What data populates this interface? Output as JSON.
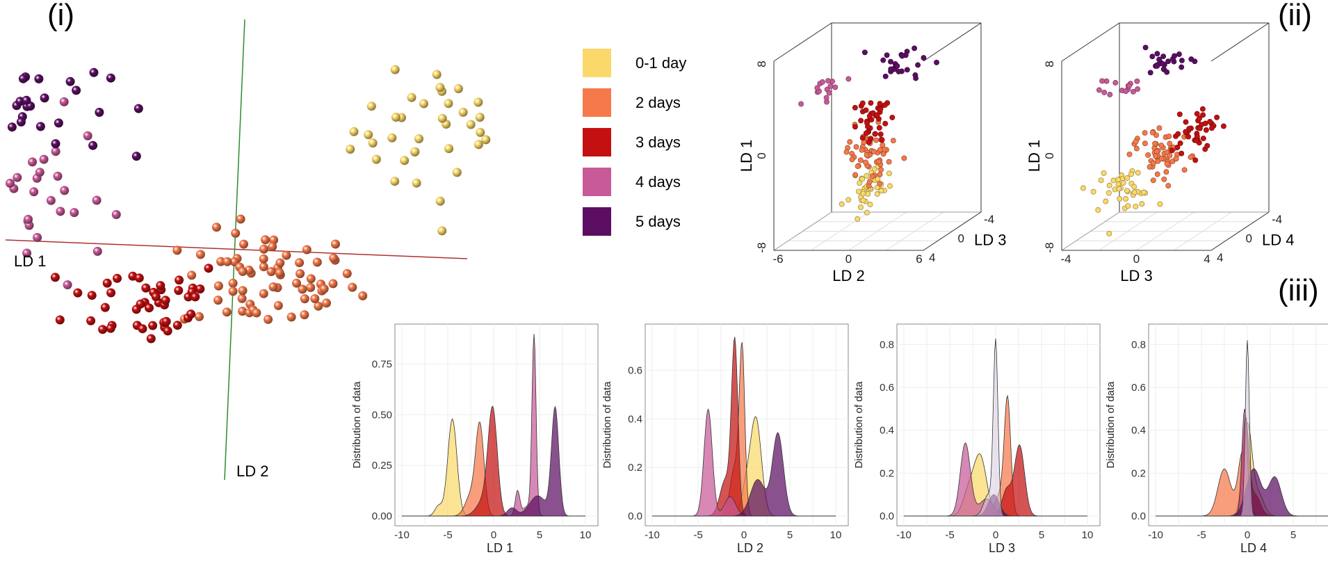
{
  "colors": {
    "day01": "#FAD96A",
    "day2": "#F5794A",
    "day3": "#C41010",
    "day4": "#C85A98",
    "day5": "#5C0E63",
    "ld1_axis": "#B03030",
    "ld2_axis": "#2E8B2E"
  },
  "panel_labels": {
    "i": "(i)",
    "ii": "(ii)",
    "iii": "(iii)"
  },
  "legend": [
    {
      "label": "0-1 day",
      "color": "#FAD96A"
    },
    {
      "label": "2 days",
      "color": "#F5794A"
    },
    {
      "label": "3 days",
      "color": "#C41010"
    },
    {
      "label": "4 days",
      "color": "#C85A98"
    },
    {
      "label": "5 days",
      "color": "#5C0E63"
    }
  ],
  "chart_data": [
    {
      "id": "panel-i",
      "type": "scatter",
      "title": "",
      "axis_labels": {
        "x": "LD 1",
        "y": "LD 2"
      },
      "series": [
        {
          "name": "0-1 day",
          "center": [
            5.5,
            4.0
          ],
          "spread": [
            1.3,
            1.4
          ],
          "n": 50
        },
        {
          "name": "2 days",
          "center": [
            0.8,
            -1.5
          ],
          "spread": [
            1.1,
            0.9
          ],
          "n": 70
        },
        {
          "name": "3 days",
          "center": [
            -2.2,
            -2.2
          ],
          "spread": [
            1.0,
            0.8
          ],
          "n": 45
        },
        {
          "name": "4 days",
          "center": [
            -5.0,
            1.5
          ],
          "spread": [
            0.9,
            1.5
          ],
          "n": 30
        },
        {
          "name": "5 days",
          "center": [
            -5.2,
            5.0
          ],
          "spread": [
            1.0,
            1.0
          ],
          "n": 30
        }
      ]
    },
    {
      "id": "panel-ii-a",
      "type": "scatter",
      "title": "",
      "xlabel": "LD 2",
      "ylabel": "LD 1",
      "zlabel": "LD 3",
      "x_ticks": [
        "-6",
        "0",
        "6"
      ],
      "y_ticks": [
        "-8",
        "0",
        "8"
      ],
      "z_ticks": [
        "-4",
        "0",
        "4"
      ],
      "xlim": [
        -6,
        6
      ],
      "ylim": [
        -8,
        8
      ],
      "zlim": [
        -4,
        4
      ],
      "series": [
        {
          "name": "0-1 day",
          "center": [
            0.8,
            -4.0,
            0
          ],
          "spread": [
            0.9,
            1.0,
            0.8
          ],
          "n": 40
        },
        {
          "name": "2 days",
          "center": [
            0.5,
            -0.5,
            0
          ],
          "spread": [
            1.0,
            1.3,
            0.8
          ],
          "n": 60
        },
        {
          "name": "3 days",
          "center": [
            0.6,
            2.2,
            0
          ],
          "spread": [
            0.8,
            1.0,
            0.8
          ],
          "n": 40
        },
        {
          "name": "4 days",
          "center": [
            -3.5,
            5.5,
            0
          ],
          "spread": [
            0.8,
            0.6,
            0.6
          ],
          "n": 15
        },
        {
          "name": "5 days",
          "center": [
            3.5,
            7.8,
            0
          ],
          "spread": [
            1.2,
            0.7,
            0.6
          ],
          "n": 25
        }
      ]
    },
    {
      "id": "panel-ii-b",
      "type": "scatter",
      "title": "",
      "xlabel": "LD 3",
      "ylabel": "LD 1",
      "zlabel": "LD 4",
      "x_ticks": [
        "-4",
        "0",
        "4"
      ],
      "y_ticks": [
        "-8",
        "0",
        "8"
      ],
      "z_ticks": [
        "-4",
        "0",
        "4"
      ],
      "xlim": [
        -4,
        4
      ],
      "ylim": [
        -8,
        8
      ],
      "zlim": [
        -4,
        4
      ],
      "series": [
        {
          "name": "0-1 day",
          "center": [
            -1.8,
            -3.8,
            0
          ],
          "spread": [
            0.9,
            1.0,
            0.8
          ],
          "n": 40
        },
        {
          "name": "2 days",
          "center": [
            0.6,
            -0.8,
            0
          ],
          "spread": [
            0.9,
            1.2,
            0.8
          ],
          "n": 60
        },
        {
          "name": "3 days",
          "center": [
            2.6,
            1.6,
            0
          ],
          "spread": [
            0.8,
            1.0,
            0.8
          ],
          "n": 40
        },
        {
          "name": "4 days",
          "center": [
            -1.6,
            5.8,
            0
          ],
          "spread": [
            0.6,
            0.6,
            0.6
          ],
          "n": 15
        },
        {
          "name": "5 days",
          "center": [
            0.8,
            7.5,
            0
          ],
          "spread": [
            0.7,
            0.8,
            0.6
          ],
          "n": 25
        }
      ]
    },
    {
      "id": "density-ld1",
      "type": "area",
      "xlabel": "LD 1",
      "ylabel": "Distribution of data",
      "xlim": [
        -10,
        10
      ],
      "ylim": [
        0,
        0.9
      ],
      "x_ticks": [
        "-10",
        "-5",
        "0",
        "5",
        "10"
      ],
      "y_ticks": [
        {
          "v": 0,
          "t": "0.00"
        },
        {
          "v": 0.25,
          "t": "0.25"
        },
        {
          "v": 0.5,
          "t": "0.50"
        },
        {
          "v": 0.75,
          "t": "0.75"
        }
      ],
      "series": [
        {
          "name": "0-1 day",
          "components": [
            [
              -4.5,
              0.5,
              0.48
            ],
            [
              -6.0,
              0.4,
              0.05
            ]
          ]
        },
        {
          "name": "2 days",
          "components": [
            [
              -1.5,
              0.45,
              0.44
            ],
            [
              -2.5,
              0.6,
              0.1
            ]
          ]
        },
        {
          "name": "3 days",
          "components": [
            [
              -0.1,
              0.5,
              0.5
            ],
            [
              -1.0,
              0.8,
              0.08
            ]
          ]
        },
        {
          "name": "4 days",
          "components": [
            [
              4.4,
              0.22,
              0.88
            ],
            [
              2.6,
              0.25,
              0.12
            ],
            [
              3.8,
              0.6,
              0.05
            ]
          ]
        },
        {
          "name": "5 days",
          "components": [
            [
              6.7,
              0.4,
              0.53
            ],
            [
              4.8,
              0.9,
              0.1
            ],
            [
              2.0,
              0.5,
              0.04
            ]
          ]
        }
      ]
    },
    {
      "id": "density-ld2",
      "type": "area",
      "xlabel": "LD 2",
      "ylabel": "Distribution of data",
      "xlim": [
        -10,
        10
      ],
      "ylim": [
        0,
        0.75
      ],
      "x_ticks": [
        "-10",
        "-5",
        "0",
        "5",
        "10"
      ],
      "y_ticks": [
        {
          "v": 0,
          "t": "0.0"
        },
        {
          "v": 0.2,
          "t": "0.2"
        },
        {
          "v": 0.4,
          "t": "0.4"
        },
        {
          "v": 0.6,
          "t": "0.6"
        }
      ],
      "series": [
        {
          "name": "0-1 day",
          "components": [
            [
              1.3,
              0.6,
              0.4
            ],
            [
              0.2,
              0.5,
              0.1
            ]
          ]
        },
        {
          "name": "2 days",
          "components": [
            [
              -0.2,
              0.3,
              0.66
            ],
            [
              -1.0,
              0.5,
              0.2
            ]
          ]
        },
        {
          "name": "3 days",
          "components": [
            [
              -1.0,
              0.35,
              0.7
            ],
            [
              -2.0,
              0.6,
              0.15
            ]
          ]
        },
        {
          "name": "4 days",
          "components": [
            [
              -3.9,
              0.45,
              0.44
            ],
            [
              -1.5,
              0.6,
              0.08
            ]
          ]
        },
        {
          "name": "5 days",
          "components": [
            [
              3.7,
              0.6,
              0.34
            ],
            [
              1.5,
              0.8,
              0.15
            ]
          ]
        }
      ]
    },
    {
      "id": "density-ld3",
      "type": "area",
      "xlabel": "LD 3",
      "ylabel": "Distribution of data",
      "xlim": [
        -10,
        10
      ],
      "ylim": [
        0,
        0.85
      ],
      "x_ticks": [
        "-10",
        "-5",
        "0",
        "5",
        "10"
      ],
      "y_ticks": [
        {
          "v": 0,
          "t": "0.0"
        },
        {
          "v": 0.2,
          "t": "0.2"
        },
        {
          "v": 0.4,
          "t": "0.4"
        },
        {
          "v": 0.6,
          "t": "0.6"
        },
        {
          "v": 0.8,
          "t": "0.8"
        }
      ],
      "series": [
        {
          "name": "0-1 day",
          "components": [
            [
              -1.7,
              0.7,
              0.28
            ],
            [
              -3.0,
              0.6,
              0.1
            ]
          ]
        },
        {
          "name": "2 days",
          "components": [
            [
              1.3,
              0.35,
              0.52
            ],
            [
              0.5,
              0.6,
              0.1
            ]
          ]
        },
        {
          "name": "3 days",
          "components": [
            [
              2.6,
              0.55,
              0.33
            ],
            [
              1.2,
              0.5,
              0.12
            ]
          ]
        },
        {
          "name": "4 days",
          "components": [
            [
              -3.3,
              0.55,
              0.34
            ],
            [
              -1.0,
              0.8,
              0.08
            ]
          ]
        },
        {
          "name": "5 days",
          "components": [
            [
              -0.2,
              0.6,
              0.1
            ]
          ]
        },
        {
          "name": "ref",
          "components": [
            [
              0.0,
              0.25,
              0.8
            ],
            [
              -0.8,
              0.5,
              0.1
            ]
          ]
        }
      ]
    },
    {
      "id": "density-ld4",
      "type": "area",
      "xlabel": "LD 4",
      "ylabel": "Distribution of data",
      "xlim": [
        -10,
        10
      ],
      "ylim": [
        0,
        0.85
      ],
      "x_ticks": [
        "-10",
        "-5",
        "0",
        "5"
      ],
      "y_ticks": [
        {
          "v": 0,
          "t": "0.0"
        },
        {
          "v": 0.2,
          "t": "0.2"
        },
        {
          "v": 0.4,
          "t": "0.4"
        },
        {
          "v": 0.6,
          "t": "0.6"
        },
        {
          "v": 0.8,
          "t": "0.8"
        }
      ],
      "series": [
        {
          "name": "0-1 day",
          "components": [
            [
              0.0,
              0.5,
              0.42
            ],
            [
              1.2,
              0.6,
              0.1
            ]
          ]
        },
        {
          "name": "2 days",
          "components": [
            [
              -2.5,
              0.7,
              0.22
            ],
            [
              -0.5,
              0.5,
              0.3
            ]
          ]
        },
        {
          "name": "3 days",
          "components": [
            [
              -0.2,
              0.35,
              0.44
            ],
            [
              0.8,
              0.6,
              0.1
            ]
          ]
        },
        {
          "name": "4 days",
          "components": [
            [
              -0.3,
              0.3,
              0.5
            ]
          ]
        },
        {
          "name": "5 days",
          "components": [
            [
              0.7,
              0.8,
              0.22
            ],
            [
              3.0,
              0.7,
              0.18
            ]
          ]
        },
        {
          "name": "ref",
          "components": [
            [
              0.0,
              0.22,
              0.82
            ]
          ]
        }
      ]
    }
  ]
}
